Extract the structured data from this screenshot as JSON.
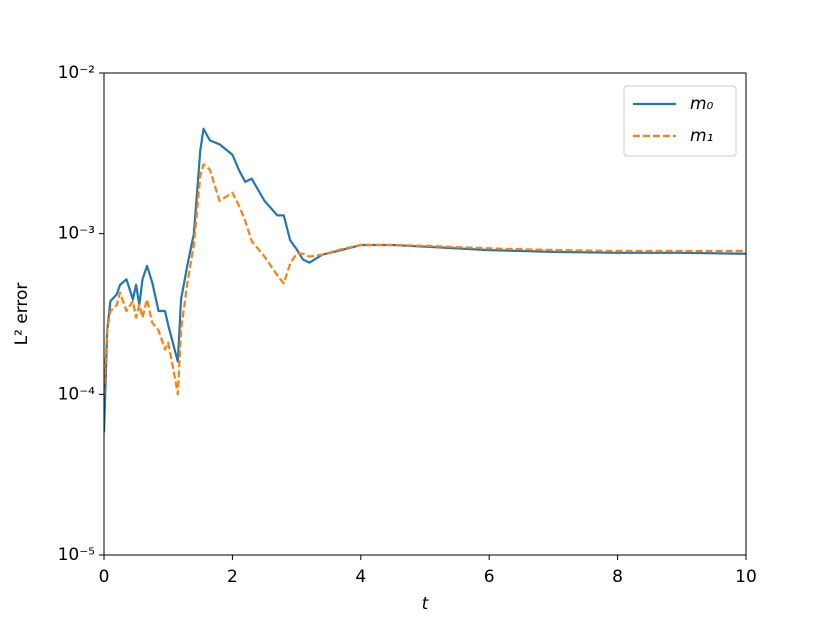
{
  "chart_data": {
    "type": "line",
    "xlabel": "t",
    "ylabel": "L² error",
    "x": [
      0,
      0.05,
      0.1,
      0.2,
      0.25,
      0.35,
      0.45,
      0.5,
      0.55,
      0.6,
      0.67,
      0.75,
      0.85,
      0.95,
      1.0,
      1.1,
      1.15,
      1.2,
      1.3,
      1.4,
      1.5,
      1.55,
      1.65,
      1.8,
      2.0,
      2.1,
      2.2,
      2.3,
      2.5,
      2.7,
      2.8,
      2.9,
      3.0,
      3.1,
      3.2,
      3.4,
      3.7,
      4.0,
      4.5,
      5,
      6,
      7,
      8,
      9,
      10
    ],
    "series": [
      {
        "name": "m₀",
        "color": "#1f77b4",
        "dash": false,
        "values": [
          5.8e-05,
          0.00025,
          0.00038,
          0.00042,
          0.00048,
          0.00052,
          0.00039,
          0.00048,
          0.00036,
          0.00052,
          0.00063,
          0.0005,
          0.00033,
          0.00033,
          0.00027,
          0.00019,
          0.00016,
          0.00039,
          0.00064,
          0.001,
          0.0033,
          0.0045,
          0.0038,
          0.0036,
          0.0031,
          0.0025,
          0.0021,
          0.0022,
          0.0016,
          0.0013,
          0.0013,
          0.00091,
          0.0008,
          0.00069,
          0.00066,
          0.00074,
          0.00079,
          0.00085,
          0.00085,
          0.00083,
          0.00079,
          0.00077,
          0.00076,
          0.00076,
          0.00075
        ]
      },
      {
        "name": "m₁",
        "color": "#ff7f0e",
        "dash": true,
        "values": [
          0.0001,
          0.00025,
          0.00033,
          0.00036,
          0.00043,
          0.00033,
          0.00038,
          0.0003,
          0.00036,
          0.0003,
          0.00039,
          0.00028,
          0.00025,
          0.00019,
          0.00021,
          0.00013,
          0.0001,
          0.00025,
          0.0005,
          0.00085,
          0.0023,
          0.0027,
          0.0025,
          0.0016,
          0.0018,
          0.0015,
          0.0012,
          0.0009,
          0.00072,
          0.00055,
          0.00049,
          0.00065,
          0.00075,
          0.00075,
          0.00072,
          0.00074,
          0.0008,
          0.00085,
          0.00085,
          0.00084,
          0.00081,
          0.00079,
          0.00078,
          0.00078,
          0.00078
        ]
      }
    ],
    "xlim": [
      0,
      10
    ],
    "xticks": [
      0,
      2,
      4,
      6,
      8,
      10
    ],
    "ylim": [
      1e-05,
      0.01
    ],
    "log_y": true,
    "yticks": [
      {
        "value": 1e-05,
        "label": "10⁻⁵"
      },
      {
        "value": 0.0001,
        "label": "10⁻⁴"
      },
      {
        "value": 0.001,
        "label": "10⁻³"
      },
      {
        "value": 0.01,
        "label": "10⁻²"
      }
    ],
    "legend": "upper right",
    "grid": false
  }
}
